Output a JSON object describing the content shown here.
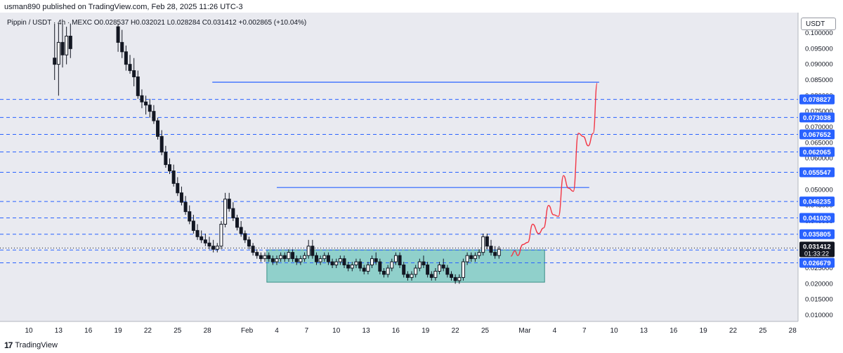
{
  "header": {
    "publisher_line": "usman890 published on TradingView.com, Feb 28, 2025 11:26 UTC-3"
  },
  "legend": {
    "text": "Pippin / USDT · 4h · MEXC  O0.028537  H0.032021  L0.028284  C0.031412  +0.002865 (+10.04%)"
  },
  "currency": "USDT",
  "footer": {
    "brand": "TradingView",
    "logo": "tradingview-logo-icon"
  },
  "colors": {
    "candle": "#131722",
    "level_line": "#2962ff",
    "tag_bg": "#2962ff",
    "zone_fill": "#80cbc4",
    "projection": "#f23645",
    "last_price_bg": "#131722"
  },
  "chart_data": {
    "type": "candlestick",
    "symbol": "Pippin / USDT",
    "interval": "4h",
    "exchange": "MEXC",
    "ohlc": {
      "open": 0.028537,
      "high": 0.032021,
      "low": 0.028284,
      "close": 0.031412,
      "change": 0.002865,
      "change_pct": 10.04
    },
    "ylim": [
      0.0085,
      0.1035
    ],
    "y_ticks": [
      "0.100000",
      "0.095000",
      "0.090000",
      "0.085000",
      "0.080000",
      "0.075000",
      "0.070000",
      "0.065000",
      "0.060000",
      "0.055000",
      "0.050000",
      "0.045000",
      "0.040000",
      "0.035000",
      "0.030000",
      "0.025000",
      "0.020000",
      "0.015000",
      "0.010000"
    ],
    "x_ticks": [
      {
        "label": "10",
        "day": 10
      },
      {
        "label": "13",
        "day": 13
      },
      {
        "label": "16",
        "day": 16
      },
      {
        "label": "19",
        "day": 19
      },
      {
        "label": "22",
        "day": 22
      },
      {
        "label": "25",
        "day": 25
      },
      {
        "label": "28",
        "day": 28
      },
      {
        "label": "Feb",
        "day": 32
      },
      {
        "label": "4",
        "day": 35
      },
      {
        "label": "7",
        "day": 38
      },
      {
        "label": "10",
        "day": 41
      },
      {
        "label": "13",
        "day": 44
      },
      {
        "label": "16",
        "day": 47
      },
      {
        "label": "19",
        "day": 50
      },
      {
        "label": "22",
        "day": 53
      },
      {
        "label": "25",
        "day": 56
      },
      {
        "label": "Mar",
        "day": 60
      },
      {
        "label": "4",
        "day": 63
      },
      {
        "label": "7",
        "day": 66
      },
      {
        "label": "10",
        "day": 69
      },
      {
        "label": "13",
        "day": 72
      },
      {
        "label": "16",
        "day": 75
      },
      {
        "label": "19",
        "day": 78
      },
      {
        "label": "22",
        "day": 81
      },
      {
        "label": "25",
        "day": 84
      },
      {
        "label": "28",
        "day": 87
      }
    ],
    "levels": [
      {
        "label": "0.078827",
        "value": 0.078827
      },
      {
        "label": "0.073038",
        "value": 0.073038
      },
      {
        "label": "0.067652",
        "value": 0.067652
      },
      {
        "label": "0.062065",
        "value": 0.062065
      },
      {
        "label": "0.055547",
        "value": 0.055547
      },
      {
        "label": "0.046235",
        "value": 0.046235
      },
      {
        "label": "0.041020",
        "value": 0.04102
      },
      {
        "label": "0.035805",
        "value": 0.035805
      },
      {
        "label": "0.030777",
        "value": 0.030777
      },
      {
        "label": "0.026679",
        "value": 0.026679
      }
    ],
    "last_price": {
      "label": "0.031412",
      "countdown": "01:33:22",
      "value": 0.031412
    },
    "resistance_lines": [
      {
        "value": 0.0843,
        "from_day": 28.5,
        "to_day": 67.5
      },
      {
        "value": 0.0507,
        "from_day": 35.0,
        "to_day": 66.5
      }
    ],
    "demand_zone": {
      "from_day": 34.0,
      "to_day": 62.0,
      "low": 0.0205,
      "high": 0.0308
    },
    "projection": [
      [
        58.6,
        0.0288
      ],
      [
        59.0,
        0.0305
      ],
      [
        59.3,
        0.029
      ],
      [
        59.8,
        0.0325
      ],
      [
        60.3,
        0.0332
      ],
      [
        60.8,
        0.039
      ],
      [
        61.4,
        0.036
      ],
      [
        61.9,
        0.0378
      ],
      [
        62.4,
        0.045
      ],
      [
        62.9,
        0.042
      ],
      [
        63.4,
        0.0415
      ],
      [
        63.9,
        0.0545
      ],
      [
        64.4,
        0.0505
      ],
      [
        64.9,
        0.0495
      ],
      [
        65.4,
        0.068
      ],
      [
        65.9,
        0.067
      ],
      [
        66.4,
        0.064
      ],
      [
        66.9,
        0.068
      ],
      [
        67.3,
        0.084
      ]
    ],
    "candles": [
      [
        0.0,
        0.041,
        0.042,
        0.036,
        0.039
      ],
      [
        0.33,
        0.039,
        0.04,
        0.034,
        0.036
      ],
      [
        0.67,
        0.036,
        0.045,
        0.035,
        0.044
      ],
      [
        1.0,
        0.044,
        0.08,
        0.043,
        0.078
      ],
      [
        1.33,
        0.078,
        0.1,
        0.07,
        0.095
      ],
      [
        1.67,
        0.095,
        0.103,
        0.085,
        0.09
      ],
      [
        2.0,
        0.09,
        0.103,
        0.088,
        0.1
      ],
      [
        12.6,
        0.092,
        0.103,
        0.085,
        0.09
      ],
      [
        13.0,
        0.09,
        0.103,
        0.08,
        0.097
      ],
      [
        13.4,
        0.097,
        0.103,
        0.089,
        0.093
      ],
      [
        13.8,
        0.093,
        0.102,
        0.09,
        0.099
      ],
      [
        14.2,
        0.099,
        0.103,
        0.092,
        0.095
      ],
      [
        19.0,
        0.102,
        0.103,
        0.094,
        0.097
      ],
      [
        19.4,
        0.097,
        0.101,
        0.092,
        0.094
      ],
      [
        19.8,
        0.094,
        0.096,
        0.088,
        0.09
      ],
      [
        20.2,
        0.09,
        0.093,
        0.087,
        0.088
      ],
      [
        20.6,
        0.088,
        0.092,
        0.083,
        0.086
      ],
      [
        21.0,
        0.086,
        0.088,
        0.079,
        0.08
      ],
      [
        21.4,
        0.08,
        0.082,
        0.076,
        0.078
      ],
      [
        21.8,
        0.078,
        0.08,
        0.074,
        0.077
      ],
      [
        22.2,
        0.077,
        0.079,
        0.073,
        0.075
      ],
      [
        22.6,
        0.075,
        0.077,
        0.071,
        0.072
      ],
      [
        23.0,
        0.072,
        0.073,
        0.066,
        0.067
      ],
      [
        23.4,
        0.067,
        0.069,
        0.061,
        0.062
      ],
      [
        23.8,
        0.062,
        0.064,
        0.057,
        0.058
      ],
      [
        24.2,
        0.058,
        0.06,
        0.055,
        0.056
      ],
      [
        24.6,
        0.056,
        0.058,
        0.051,
        0.052
      ],
      [
        25.0,
        0.052,
        0.054,
        0.048,
        0.049
      ],
      [
        25.4,
        0.049,
        0.051,
        0.045,
        0.046
      ],
      [
        25.8,
        0.046,
        0.048,
        0.042,
        0.043
      ],
      [
        26.2,
        0.043,
        0.045,
        0.039,
        0.04
      ],
      [
        26.6,
        0.04,
        0.042,
        0.036,
        0.037
      ],
      [
        27.0,
        0.037,
        0.039,
        0.034,
        0.035
      ],
      [
        27.4,
        0.035,
        0.037,
        0.033,
        0.034
      ],
      [
        27.8,
        0.034,
        0.036,
        0.032,
        0.033
      ],
      [
        28.2,
        0.033,
        0.035,
        0.031,
        0.032
      ],
      [
        28.6,
        0.032,
        0.034,
        0.03,
        0.031
      ],
      [
        29.0,
        0.031,
        0.033,
        0.03,
        0.032
      ],
      [
        29.4,
        0.032,
        0.04,
        0.031,
        0.039
      ],
      [
        29.8,
        0.039,
        0.049,
        0.038,
        0.047
      ],
      [
        30.2,
        0.047,
        0.049,
        0.043,
        0.044
      ],
      [
        30.6,
        0.044,
        0.046,
        0.04,
        0.041
      ],
      [
        31.0,
        0.041,
        0.042,
        0.037,
        0.038
      ],
      [
        31.4,
        0.038,
        0.04,
        0.035,
        0.036
      ],
      [
        31.8,
        0.036,
        0.037,
        0.033,
        0.034
      ],
      [
        32.2,
        0.034,
        0.035,
        0.031,
        0.032
      ],
      [
        32.6,
        0.032,
        0.033,
        0.029,
        0.03
      ],
      [
        33.0,
        0.03,
        0.031,
        0.028,
        0.029
      ],
      [
        33.4,
        0.029,
        0.03,
        0.027,
        0.028
      ],
      [
        33.8,
        0.028,
        0.03,
        0.027,
        0.029
      ],
      [
        34.2,
        0.029,
        0.03,
        0.027,
        0.028
      ],
      [
        34.6,
        0.028,
        0.029,
        0.026,
        0.027
      ],
      [
        35.0,
        0.027,
        0.029,
        0.026,
        0.028
      ],
      [
        35.4,
        0.028,
        0.03,
        0.027,
        0.029
      ],
      [
        35.8,
        0.029,
        0.03,
        0.027,
        0.028
      ],
      [
        36.2,
        0.028,
        0.031,
        0.027,
        0.03
      ],
      [
        36.6,
        0.03,
        0.031,
        0.027,
        0.028
      ],
      [
        37.0,
        0.028,
        0.029,
        0.026,
        0.027
      ],
      [
        37.4,
        0.027,
        0.029,
        0.026,
        0.028
      ],
      [
        37.8,
        0.028,
        0.03,
        0.027,
        0.029
      ],
      [
        38.2,
        0.029,
        0.034,
        0.028,
        0.032
      ],
      [
        38.6,
        0.032,
        0.034,
        0.028,
        0.029
      ],
      [
        39.0,
        0.029,
        0.03,
        0.026,
        0.027
      ],
      [
        39.4,
        0.027,
        0.029,
        0.026,
        0.028
      ],
      [
        39.8,
        0.028,
        0.03,
        0.027,
        0.029
      ],
      [
        40.2,
        0.029,
        0.03,
        0.026,
        0.027
      ],
      [
        40.6,
        0.027,
        0.028,
        0.025,
        0.026
      ],
      [
        41.0,
        0.026,
        0.028,
        0.025,
        0.027
      ],
      [
        41.4,
        0.027,
        0.029,
        0.026,
        0.028
      ],
      [
        41.8,
        0.028,
        0.029,
        0.025,
        0.026
      ],
      [
        42.2,
        0.026,
        0.027,
        0.024,
        0.025
      ],
      [
        42.6,
        0.025,
        0.027,
        0.024,
        0.026
      ],
      [
        43.0,
        0.026,
        0.028,
        0.025,
        0.027
      ],
      [
        43.4,
        0.027,
        0.028,
        0.024,
        0.025
      ],
      [
        43.8,
        0.025,
        0.026,
        0.023,
        0.024
      ],
      [
        44.2,
        0.024,
        0.027,
        0.023,
        0.026
      ],
      [
        44.6,
        0.026,
        0.029,
        0.025,
        0.028
      ],
      [
        45.0,
        0.028,
        0.03,
        0.026,
        0.027
      ],
      [
        45.4,
        0.027,
        0.028,
        0.023,
        0.024
      ],
      [
        45.8,
        0.024,
        0.025,
        0.022,
        0.023
      ],
      [
        46.2,
        0.023,
        0.026,
        0.022,
        0.025
      ],
      [
        46.6,
        0.025,
        0.028,
        0.024,
        0.027
      ],
      [
        47.0,
        0.027,
        0.03,
        0.026,
        0.029
      ],
      [
        47.4,
        0.029,
        0.03,
        0.025,
        0.026
      ],
      [
        47.8,
        0.026,
        0.027,
        0.022,
        0.023
      ],
      [
        48.2,
        0.023,
        0.024,
        0.021,
        0.022
      ],
      [
        48.6,
        0.022,
        0.024,
        0.021,
        0.023
      ],
      [
        49.0,
        0.023,
        0.026,
        0.022,
        0.025
      ],
      [
        49.4,
        0.025,
        0.028,
        0.024,
        0.027
      ],
      [
        49.8,
        0.027,
        0.029,
        0.025,
        0.026
      ],
      [
        50.2,
        0.026,
        0.027,
        0.022,
        0.023
      ],
      [
        50.6,
        0.023,
        0.024,
        0.021,
        0.022
      ],
      [
        51.0,
        0.022,
        0.025,
        0.021,
        0.024
      ],
      [
        51.4,
        0.024,
        0.027,
        0.023,
        0.026
      ],
      [
        51.8,
        0.026,
        0.028,
        0.024,
        0.025
      ],
      [
        52.2,
        0.025,
        0.026,
        0.022,
        0.023
      ],
      [
        52.6,
        0.023,
        0.024,
        0.021,
        0.022
      ],
      [
        53.0,
        0.022,
        0.023,
        0.02,
        0.021
      ],
      [
        53.4,
        0.021,
        0.023,
        0.02,
        0.022
      ],
      [
        53.8,
        0.022,
        0.028,
        0.021,
        0.027
      ],
      [
        54.2,
        0.027,
        0.03,
        0.026,
        0.029
      ],
      [
        54.6,
        0.029,
        0.03,
        0.027,
        0.028
      ],
      [
        55.0,
        0.028,
        0.03,
        0.027,
        0.029
      ],
      [
        55.4,
        0.029,
        0.031,
        0.028,
        0.03
      ],
      [
        55.8,
        0.03,
        0.036,
        0.029,
        0.035
      ],
      [
        56.2,
        0.035,
        0.036,
        0.031,
        0.032
      ],
      [
        56.6,
        0.032,
        0.034,
        0.029,
        0.03
      ],
      [
        57.0,
        0.03,
        0.032,
        0.028,
        0.029
      ],
      [
        57.4,
        0.029,
        0.032,
        0.028,
        0.031
      ]
    ]
  }
}
